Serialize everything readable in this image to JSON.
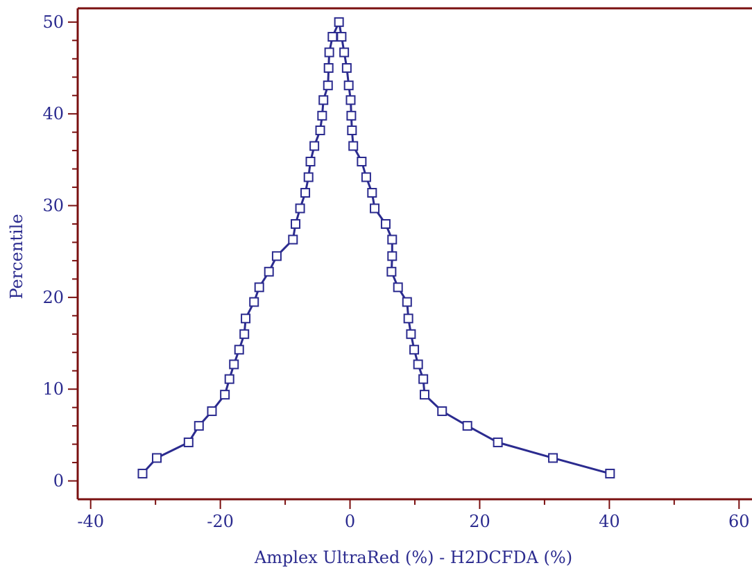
{
  "chart_data": {
    "type": "line",
    "title": "",
    "xlabel": "Amplex UltraRed (%) - H2DCFDA (%)",
    "ylabel": "Percentile",
    "xlim": [
      -42,
      62
    ],
    "ylim": [
      -2,
      51.5
    ],
    "x_ticks": [
      -40,
      -20,
      0,
      20,
      40,
      60
    ],
    "x_tick_labels": [
      "-40",
      "-20",
      "0",
      "20",
      "40",
      "60"
    ],
    "y_ticks": [
      0,
      10,
      20,
      30,
      40,
      50
    ],
    "y_tick_labels": [
      "0",
      "10",
      "20",
      "30",
      "40",
      "50"
    ],
    "grid": false,
    "legend": "none",
    "colors": {
      "line": "#2b2b8f",
      "axes": "#7a1010",
      "marker_fill": "#ffffff"
    },
    "series": [
      {
        "marker": "square",
        "x": [
          -32.0,
          -29.8,
          -24.9,
          -23.3,
          -21.3,
          -19.3,
          -18.6,
          -17.9,
          -17.1,
          -16.3,
          -16.1,
          -14.8,
          -14.0,
          -12.5,
          -11.3,
          -8.8,
          -8.4,
          -7.7,
          -6.9,
          -6.4,
          -6.1,
          -5.5,
          -4.6,
          -4.3,
          -4.1,
          -3.4,
          -3.3,
          -3.2,
          -2.7,
          -1.7,
          -1.3,
          -0.9,
          -0.5,
          -0.2,
          0.1,
          0.2,
          0.3,
          0.5,
          1.8,
          2.5,
          3.4,
          3.8,
          5.5,
          6.5,
          6.5,
          6.4,
          7.4,
          8.8,
          9.0,
          9.4,
          9.9,
          10.5,
          11.3,
          11.5,
          14.2,
          18.1,
          22.8,
          31.3,
          40.1
        ],
        "y": [
          0.8,
          2.5,
          4.2,
          6.0,
          7.6,
          9.4,
          11.1,
          12.7,
          14.3,
          16.0,
          17.7,
          19.5,
          21.1,
          22.8,
          24.5,
          26.3,
          28.0,
          29.7,
          31.4,
          33.1,
          34.8,
          36.5,
          38.2,
          39.8,
          41.5,
          43.1,
          45.0,
          46.7,
          48.4,
          50.0,
          48.4,
          46.7,
          45.0,
          43.1,
          41.5,
          39.8,
          38.2,
          36.5,
          34.8,
          33.1,
          31.4,
          29.7,
          28.0,
          26.3,
          24.5,
          22.8,
          21.1,
          19.5,
          17.7,
          16.0,
          14.3,
          12.7,
          11.1,
          9.4,
          7.6,
          6.0,
          4.2,
          2.5,
          0.8
        ]
      }
    ]
  }
}
